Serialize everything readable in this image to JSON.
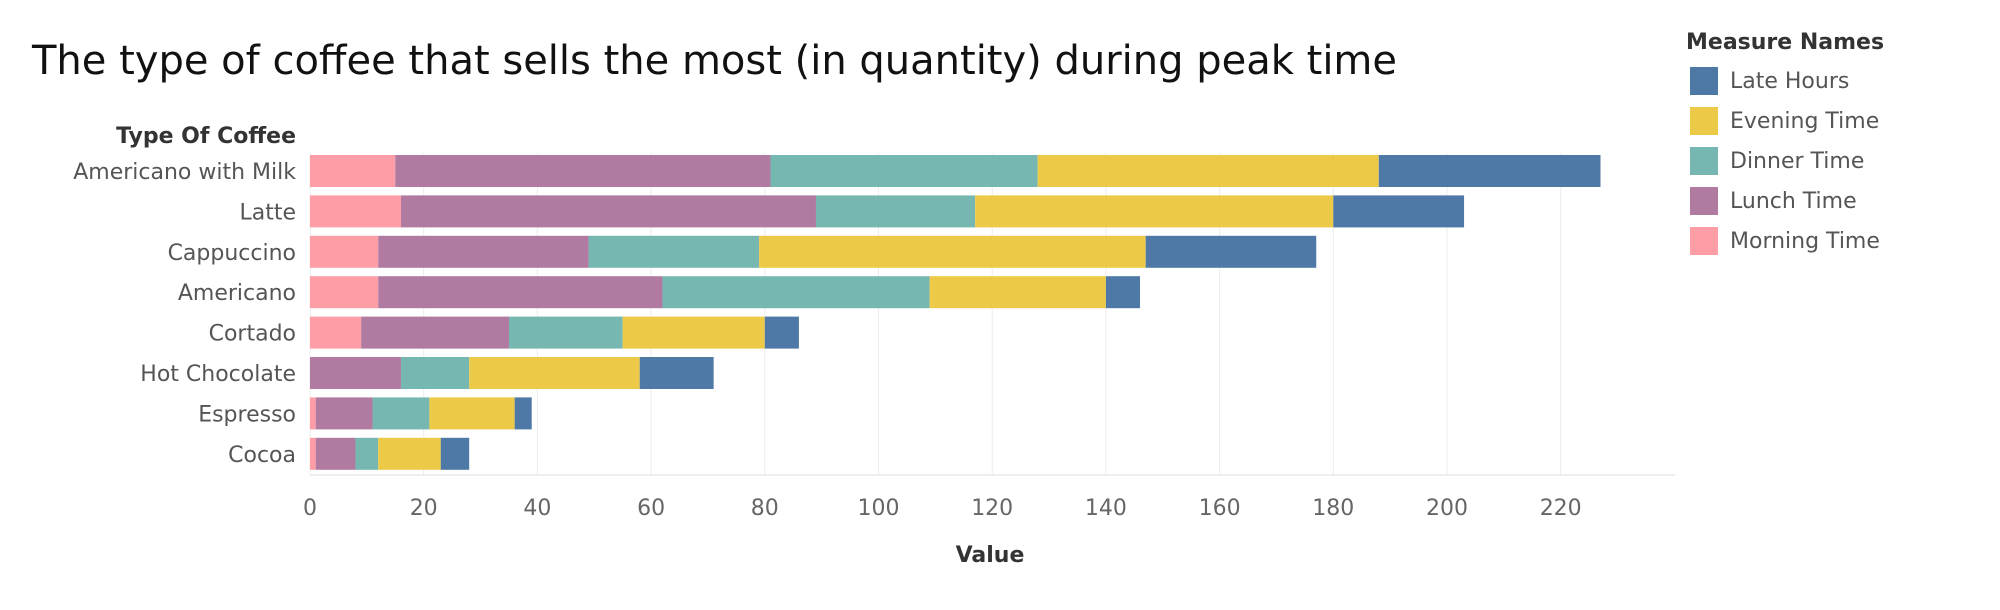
{
  "chart_data": {
    "type": "bar",
    "orientation": "horizontal",
    "stacked": true,
    "title": "The type of coffee that sells the most (in quantity) during peak time",
    "ylabel": "Type Of Coffee",
    "xlabel": "Value",
    "xlim": [
      0,
      238
    ],
    "xticks": [
      0,
      20,
      40,
      60,
      80,
      100,
      120,
      140,
      160,
      180,
      200,
      220
    ],
    "grid": true,
    "legend_placement": "right",
    "legend_title": "Measure Names",
    "categories": [
      "Americano with Milk",
      "Latte",
      "Cappuccino",
      "Americano",
      "Cortado",
      "Hot Chocolate",
      "Espresso",
      "Cocoa"
    ],
    "series": [
      {
        "name": "Morning Time",
        "color": "#FF9DA7",
        "values": [
          15,
          16,
          12,
          12,
          9,
          0,
          1,
          1
        ]
      },
      {
        "name": "Lunch Time",
        "color": "#B07AA1",
        "values": [
          66,
          73,
          37,
          50,
          26,
          16,
          10,
          7
        ]
      },
      {
        "name": "Dinner Time",
        "color": "#76B7B2",
        "values": [
          47,
          28,
          30,
          47,
          20,
          12,
          10,
          4
        ]
      },
      {
        "name": "Evening Time",
        "color": "#EDC948",
        "values": [
          60,
          63,
          68,
          31,
          25,
          30,
          15,
          11
        ]
      },
      {
        "name": "Late Hours",
        "color": "#4E79A7",
        "values": [
          39,
          23,
          30,
          6,
          6,
          13,
          3,
          5
        ]
      }
    ],
    "legend_order": [
      "Late Hours",
      "Evening Time",
      "Dinner Time",
      "Lunch Time",
      "Morning Time"
    ]
  }
}
